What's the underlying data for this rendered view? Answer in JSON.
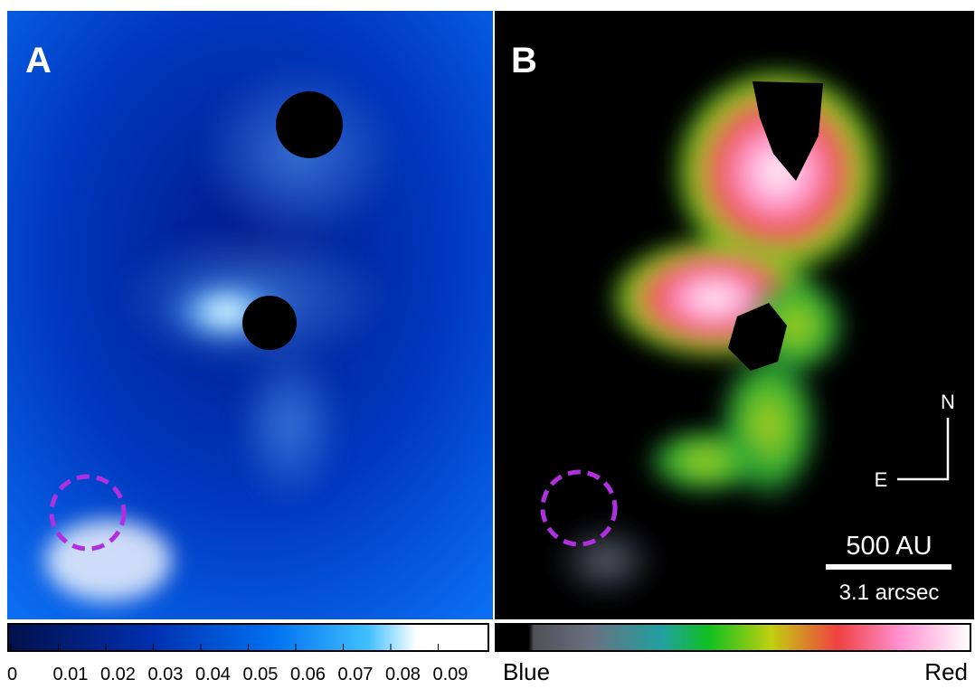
{
  "panels": [
    {
      "label": "A"
    },
    {
      "label": "B"
    }
  ],
  "colorbar_a": {
    "ticks": [
      "0",
      "0.01",
      "0.02",
      "0.03",
      "0.04",
      "0.05",
      "0.06",
      "0.07",
      "0.08",
      "0.09"
    ]
  },
  "colorbar_b": {
    "left": "Blue",
    "right": "Red"
  },
  "compass": {
    "north": "N",
    "east": "E"
  },
  "scale_bar": {
    "length": "500 AU",
    "angle": "3.1 arcsec"
  }
}
